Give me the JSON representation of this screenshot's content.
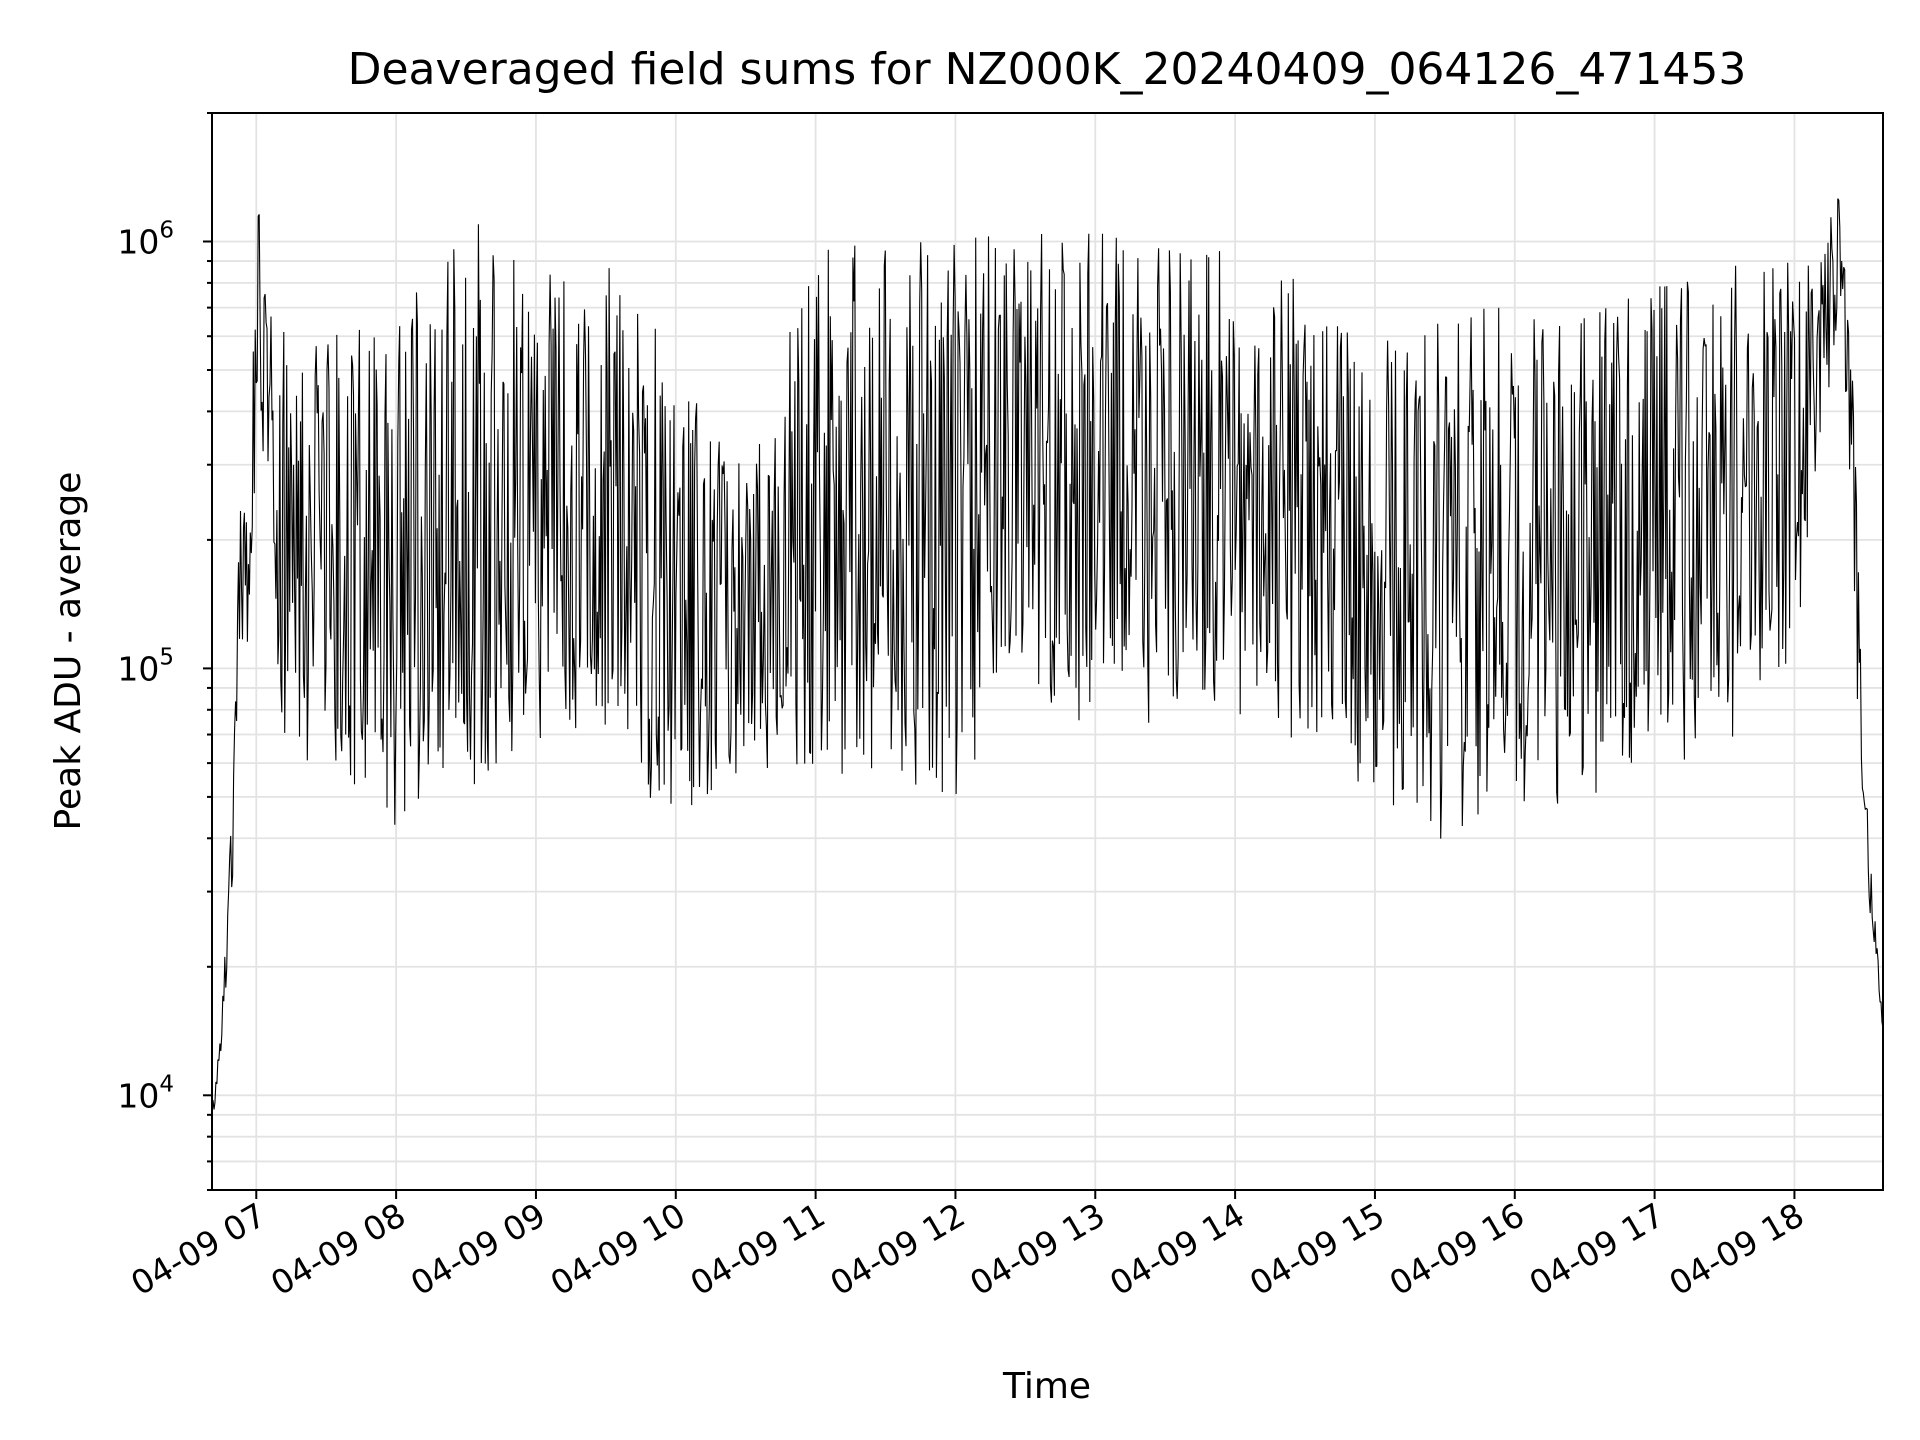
{
  "chart_data": {
    "type": "line",
    "title": "Deaveraged field sums for NZ000K_20240409_064126_471453",
    "xlabel": "Time",
    "ylabel": "Peak ADU - average",
    "x_start": "2024-04-09 06:41",
    "x_end": "2024-04-09 18:38",
    "xlim": [
      "2024-04-09 06:41",
      "2024-04-09 18:38"
    ],
    "xticks": [
      "04-09 07",
      "04-09 08",
      "04-09 09",
      "04-09 10",
      "04-09 11",
      "04-09 12",
      "04-09 13",
      "04-09 14",
      "04-09 15",
      "04-09 16",
      "04-09 17",
      "04-09 18"
    ],
    "y_scale": "log",
    "ylim": [
      6000,
      2000000
    ],
    "yticks": [
      {
        "base": "10",
        "exp": "4",
        "value": 10000
      },
      {
        "base": "10",
        "exp": "5",
        "value": 100000
      },
      {
        "base": "10",
        "exp": "6",
        "value": 1000000
      }
    ],
    "grid": true,
    "line_color": "#000000",
    "series": [
      {
        "envelope": [
          {
            "t": "06:41",
            "low": 8500,
            "high": 9500
          },
          {
            "t": "06:45",
            "low": 12000,
            "high": 15000
          },
          {
            "t": "06:50",
            "low": 30000,
            "high": 60000
          },
          {
            "t": "06:53",
            "low": 90000,
            "high": 430000
          },
          {
            "t": "06:55",
            "low": 95000,
            "high": 270000
          },
          {
            "t": "06:57",
            "low": 90000,
            "high": 190000
          },
          {
            "t": "07:00",
            "low": 350000,
            "high": 1500000
          },
          {
            "t": "07:05",
            "low": 250000,
            "high": 700000
          },
          {
            "t": "07:10",
            "low": 70000,
            "high": 650000
          },
          {
            "t": "07:30",
            "low": 50000,
            "high": 600000
          },
          {
            "t": "08:00",
            "low": 40000,
            "high": 700000
          },
          {
            "t": "08:30",
            "low": 45000,
            "high": 1200000
          },
          {
            "t": "09:00",
            "low": 60000,
            "high": 850000
          },
          {
            "t": "09:30",
            "low": 60000,
            "high": 900000
          },
          {
            "t": "10:00",
            "low": 40000,
            "high": 550000
          },
          {
            "t": "10:30",
            "low": 55000,
            "high": 300000
          },
          {
            "t": "11:00",
            "low": 55000,
            "high": 1000000
          },
          {
            "t": "11:30",
            "low": 50000,
            "high": 1000000
          },
          {
            "t": "12:00",
            "low": 45000,
            "high": 1050000
          },
          {
            "t": "12:30",
            "low": 80000,
            "high": 1100000
          },
          {
            "t": "13:00",
            "low": 60000,
            "high": 1050000
          },
          {
            "t": "13:30",
            "low": 70000,
            "high": 1000000
          },
          {
            "t": "14:00",
            "low": 70000,
            "high": 950000
          },
          {
            "t": "14:30",
            "low": 60000,
            "high": 900000
          },
          {
            "t": "15:00",
            "low": 45000,
            "high": 650000
          },
          {
            "t": "15:30",
            "low": 35000,
            "high": 700000
          },
          {
            "t": "16:00",
            "low": 45000,
            "high": 700000
          },
          {
            "t": "16:30",
            "low": 45000,
            "high": 700000
          },
          {
            "t": "17:00",
            "low": 60000,
            "high": 800000
          },
          {
            "t": "17:30",
            "low": 55000,
            "high": 900000
          },
          {
            "t": "18:00",
            "low": 100000,
            "high": 900000
          },
          {
            "t": "18:20",
            "low": 700000,
            "high": 1400000
          },
          {
            "t": "18:25",
            "low": 150000,
            "high": 500000
          },
          {
            "t": "18:30",
            "low": 35000,
            "high": 60000
          },
          {
            "t": "18:35",
            "low": 20000,
            "high": 25000
          },
          {
            "t": "18:38",
            "low": 14000,
            "high": 16000
          }
        ]
      }
    ]
  }
}
